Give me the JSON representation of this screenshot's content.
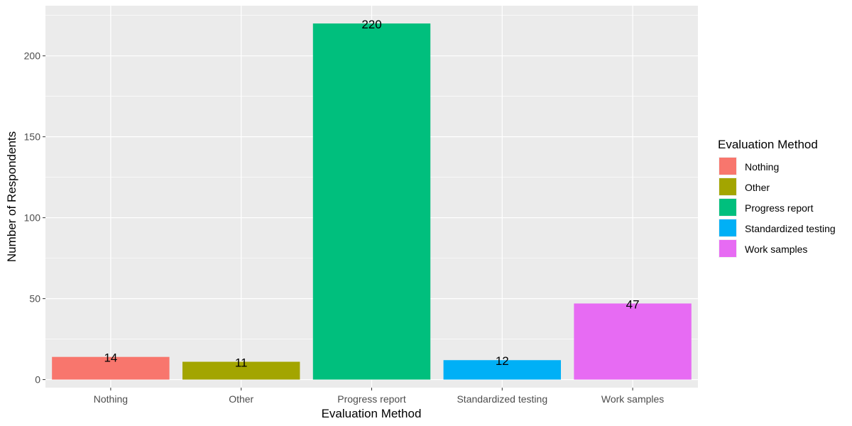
{
  "chart_data": {
    "type": "bar",
    "categories": [
      "Nothing",
      "Other",
      "Progress report",
      "Standardized testing",
      "Work samples"
    ],
    "values": [
      14,
      11,
      220,
      12,
      47
    ],
    "data_labels": [
      "14",
      "11",
      "220",
      "12",
      "47"
    ],
    "colors": [
      "#F8766D",
      "#A3A500",
      "#00BF7D",
      "#00B0F6",
      "#E76BF3"
    ],
    "xlabel": "Evaluation Method",
    "ylabel": "Number of Respondents",
    "ylim": [
      -5,
      231
    ],
    "yticks": [
      0,
      50,
      100,
      150,
      200
    ],
    "grid": true,
    "panel_background": "#EBEBEB",
    "legend": {
      "title": "Evaluation Method",
      "position": "right",
      "entries": [
        "Nothing",
        "Other",
        "Progress report",
        "Standardized testing",
        "Work samples"
      ]
    }
  }
}
